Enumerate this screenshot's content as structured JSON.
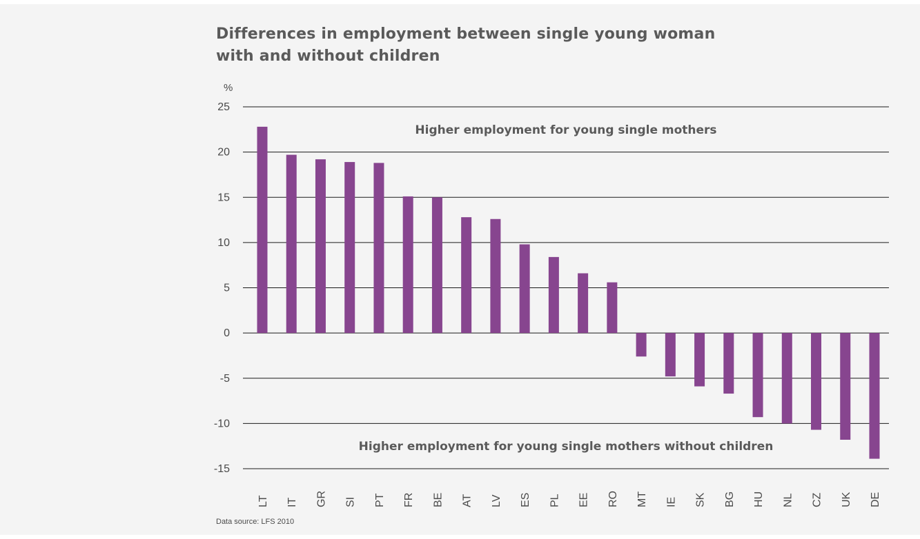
{
  "title_lines": [
    "Differences in employment between single young woman",
    "with and without children"
  ],
  "source": "Data source: LFS 2010",
  "colors": {
    "bar": "#87458f",
    "grid": "#1a1a1a",
    "background": "#f4f4f4"
  },
  "chart_data": {
    "type": "bar",
    "title": "Differences in employment between single young woman with and without children",
    "ylabel": "%",
    "xlabel": "",
    "ylim": [
      -15,
      25
    ],
    "yticks": [
      25,
      20,
      15,
      10,
      5,
      0,
      -5,
      -10,
      -15
    ],
    "grid": true,
    "categories": [
      "LT",
      "IT",
      "GR",
      "SI",
      "PT",
      "FR",
      "BE",
      "AT",
      "LV",
      "ES",
      "PL",
      "EE",
      "RO",
      "MT",
      "IE",
      "SK",
      "BG",
      "HU",
      "NL",
      "CZ",
      "UK",
      "DE"
    ],
    "series": [
      {
        "values": [
          22.8,
          19.7,
          19.2,
          18.9,
          18.8,
          15.1,
          15.0,
          12.8,
          12.6,
          9.8,
          8.4,
          6.6,
          5.6,
          -2.6,
          -4.8,
          -5.9,
          -6.7,
          -9.3,
          -10.0,
          -10.7,
          -11.8,
          -13.9
        ]
      }
    ],
    "annotations": [
      {
        "text": "Higher employment for young single mothers",
        "y": 22.5
      },
      {
        "text": "Higher employment for young single mothers without children",
        "y": -12.5
      }
    ]
  }
}
